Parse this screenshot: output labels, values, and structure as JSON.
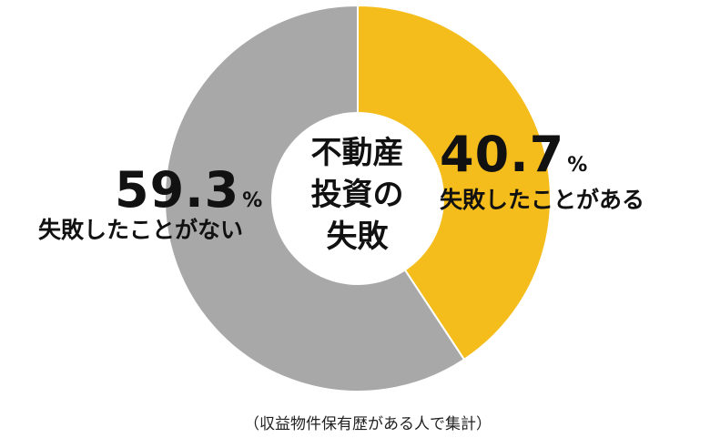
{
  "chart_data": {
    "type": "pie",
    "title_lines": [
      "不動産",
      "投資の",
      "失敗"
    ],
    "slices": [
      {
        "name": "失敗したことがある",
        "value": 40.7,
        "display": "40.7",
        "unit": "%",
        "color": "#F5BD1C"
      },
      {
        "name": "失敗したことがない",
        "value": 59.3,
        "display": "59.3",
        "unit": "%",
        "color": "#A8A8A8"
      }
    ],
    "note": "（収益物件保有歴がある人で集計）"
  }
}
